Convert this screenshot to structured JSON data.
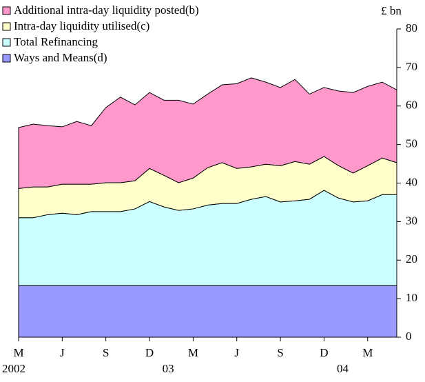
{
  "chart_data": {
    "type": "stacked_area",
    "y_label": "£ bn",
    "categories": [
      "M",
      null,
      null,
      "J",
      null,
      null,
      "S",
      null,
      null,
      "D",
      null,
      null,
      "M",
      null,
      null,
      "J",
      null,
      null,
      "S",
      null,
      null,
      "D",
      null,
      null,
      "M",
      null,
      null
    ],
    "category_years": [
      "2002",
      null,
      null,
      null,
      null,
      null,
      null,
      null,
      null,
      null,
      "03",
      null,
      null,
      null,
      null,
      null,
      null,
      null,
      null,
      null,
      null,
      null,
      "04",
      null,
      null,
      null,
      null
    ],
    "series": [
      {
        "name": "Ways and Means(d)",
        "color": "#9999ff",
        "values": [
          13.4,
          13.4,
          13.4,
          13.4,
          13.4,
          13.4,
          13.4,
          13.4,
          13.4,
          13.4,
          13.4,
          13.4,
          13.4,
          13.4,
          13.4,
          13.4,
          13.4,
          13.4,
          13.4,
          13.4,
          13.4,
          13.4,
          13.4,
          13.4,
          13.4,
          13.4,
          13.4
        ]
      },
      {
        "name": "Total Refinancing",
        "color": "#ccffff",
        "values": [
          17.6,
          17.6,
          18.4,
          18.8,
          18.4,
          19.2,
          19.2,
          19.2,
          19.9,
          21.8,
          20.4,
          19.5,
          19.9,
          20.9,
          21.3,
          21.3,
          22.4,
          23.1,
          21.7,
          22.0,
          22.4,
          24.7,
          22.7,
          21.7,
          22.0,
          23.6,
          23.6
        ]
      },
      {
        "name": "Intra-day liquidity utilised(c)",
        "color": "#ffffcc",
        "values": [
          7.6,
          8.0,
          7.2,
          7.5,
          7.9,
          7.1,
          7.5,
          7.5,
          7.3,
          8.6,
          8.2,
          7.2,
          8.0,
          9.7,
          10.6,
          9.1,
          8.4,
          8.4,
          9.4,
          10.2,
          9.1,
          8.8,
          8.4,
          7.5,
          9.1,
          9.5,
          8.3
        ]
      },
      {
        "name": "Additional intra-day liquidity posted(b)",
        "color": "#ff99cc",
        "values": [
          15.8,
          16.3,
          15.9,
          14.9,
          16.3,
          15.2,
          19.5,
          22.2,
          19.7,
          19.7,
          19.5,
          21.4,
          19.2,
          19.1,
          20.2,
          22.0,
          23.1,
          21.3,
          20.3,
          21.3,
          18.2,
          17.9,
          19.4,
          20.9,
          20.6,
          19.7,
          18.9
        ]
      }
    ],
    "ylim": [
      0,
      80
    ],
    "yticks": [
      0,
      10,
      20,
      30,
      40,
      50,
      60,
      70,
      80
    ]
  }
}
